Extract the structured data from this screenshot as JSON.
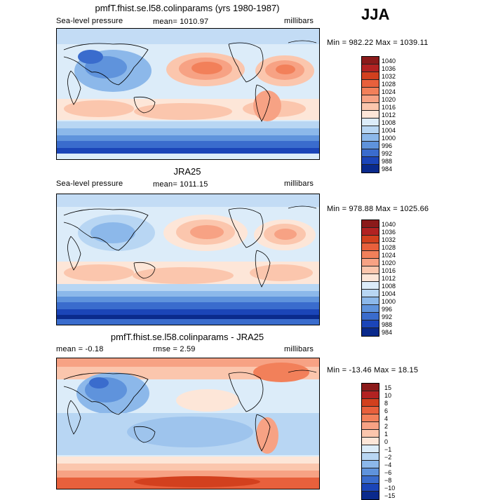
{
  "season": "JJA",
  "panels": [
    {
      "title": "pmfT.fhist.se.l58.colinparams (yrs 1980-1987)",
      "variable": "Sea-level pressure",
      "mean_label": "mean= 1010.97",
      "units": "millibars",
      "range": "Min = 982.22 Max = 1039.11",
      "colorbar_ticks": [
        "1040",
        "1036",
        "1032",
        "1028",
        "1024",
        "1020",
        "1016",
        "1012",
        "1008",
        "1004",
        "1000",
        "996",
        "992",
        "988",
        "984"
      ],
      "colorbar_colors": [
        "#8b1a1a",
        "#b22222",
        "#d2401e",
        "#e8603c",
        "#f2805a",
        "#f7a284",
        "#fbc6ad",
        "#fde6d8",
        "#dcecf9",
        "#b8d6f3",
        "#8cb8ea",
        "#5f93dc",
        "#3a6ccd",
        "#1b45b8",
        "#0a2a8c"
      ]
    },
    {
      "title": "JRA25",
      "variable": "Sea-level pressure",
      "mean_label": "mean= 1011.15",
      "units": "millibars",
      "range": "Min = 978.88 Max = 1025.66",
      "colorbar_ticks": [
        "1040",
        "1036",
        "1032",
        "1028",
        "1024",
        "1020",
        "1016",
        "1012",
        "1008",
        "1004",
        "1000",
        "996",
        "992",
        "988",
        "984"
      ],
      "colorbar_colors": [
        "#8b1a1a",
        "#b22222",
        "#d2401e",
        "#e8603c",
        "#f2805a",
        "#f7a284",
        "#fbc6ad",
        "#fde6d8",
        "#dcecf9",
        "#b8d6f3",
        "#8cb8ea",
        "#5f93dc",
        "#3a6ccd",
        "#1b45b8",
        "#0a2a8c"
      ]
    },
    {
      "title": "pmfT.fhist.se.l58.colinparams - JRA25",
      "mean_label": "mean =  -0.18",
      "rmse_label": "rmse =   2.59",
      "units": "millibars",
      "range": "Min = -13.46 Max =  18.15",
      "colorbar_ticks": [
        "15",
        "10",
        "8",
        "6",
        "4",
        "2",
        "1",
        "0",
        "−1",
        "−2",
        "−4",
        "−6",
        "−8",
        "−10",
        "−15"
      ],
      "colorbar_colors": [
        "#8b1a1a",
        "#b22222",
        "#d2401e",
        "#e8603c",
        "#f2805a",
        "#f7a284",
        "#fbc6ad",
        "#fde6d8",
        "#dcecf9",
        "#b8d6f3",
        "#8cb8ea",
        "#5f93dc",
        "#3a6ccd",
        "#1b45b8",
        "#0a2a8c"
      ]
    }
  ]
}
